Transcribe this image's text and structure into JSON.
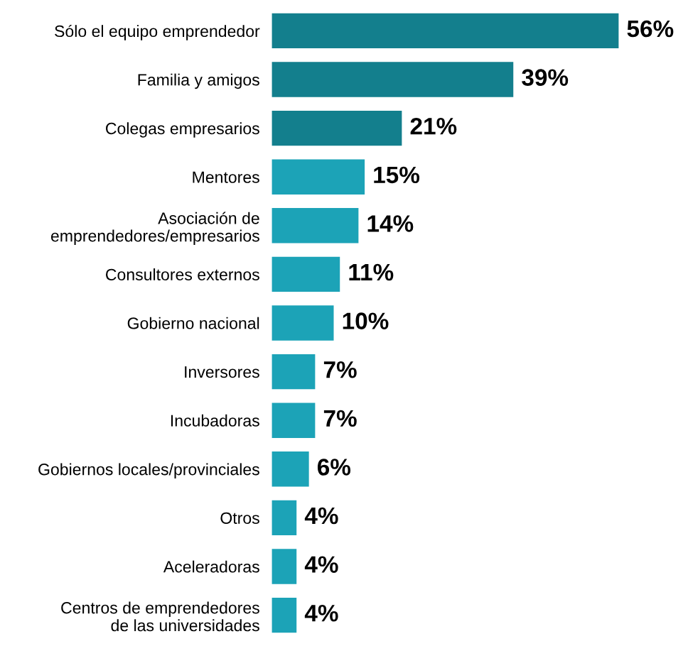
{
  "chart_data": {
    "type": "bar",
    "orientation": "horizontal",
    "categories": [
      "Sólo el equipo emprendedor",
      "Familia y amigos",
      "Colegas empresarios",
      "Mentores",
      "Asociación de\nemprendedores/empresarios",
      "Consultores externos",
      "Gobierno nacional",
      "Inversores",
      "Incubadoras",
      "Gobiernos locales/provinciales",
      "Otros",
      "Aceleradoras",
      "Centros de emprendedores\nde las universidades"
    ],
    "values": [
      56,
      39,
      21,
      15,
      14,
      11,
      10,
      7,
      7,
      6,
      4,
      4,
      4
    ],
    "colors": [
      "#137f8d",
      "#137f8d",
      "#137f8d",
      "#1ca3b7",
      "#1ca3b7",
      "#1ca3b7",
      "#1ca3b7",
      "#1ca3b7",
      "#1ca3b7",
      "#1ca3b7",
      "#1ca3b7",
      "#1ca3b7",
      "#1ca3b7"
    ],
    "value_labels": [
      "56%",
      "39%",
      "21%",
      "15%",
      "14%",
      "11%",
      "10%",
      "7%",
      "7%",
      "6%",
      "4%",
      "4%",
      "4%"
    ]
  }
}
